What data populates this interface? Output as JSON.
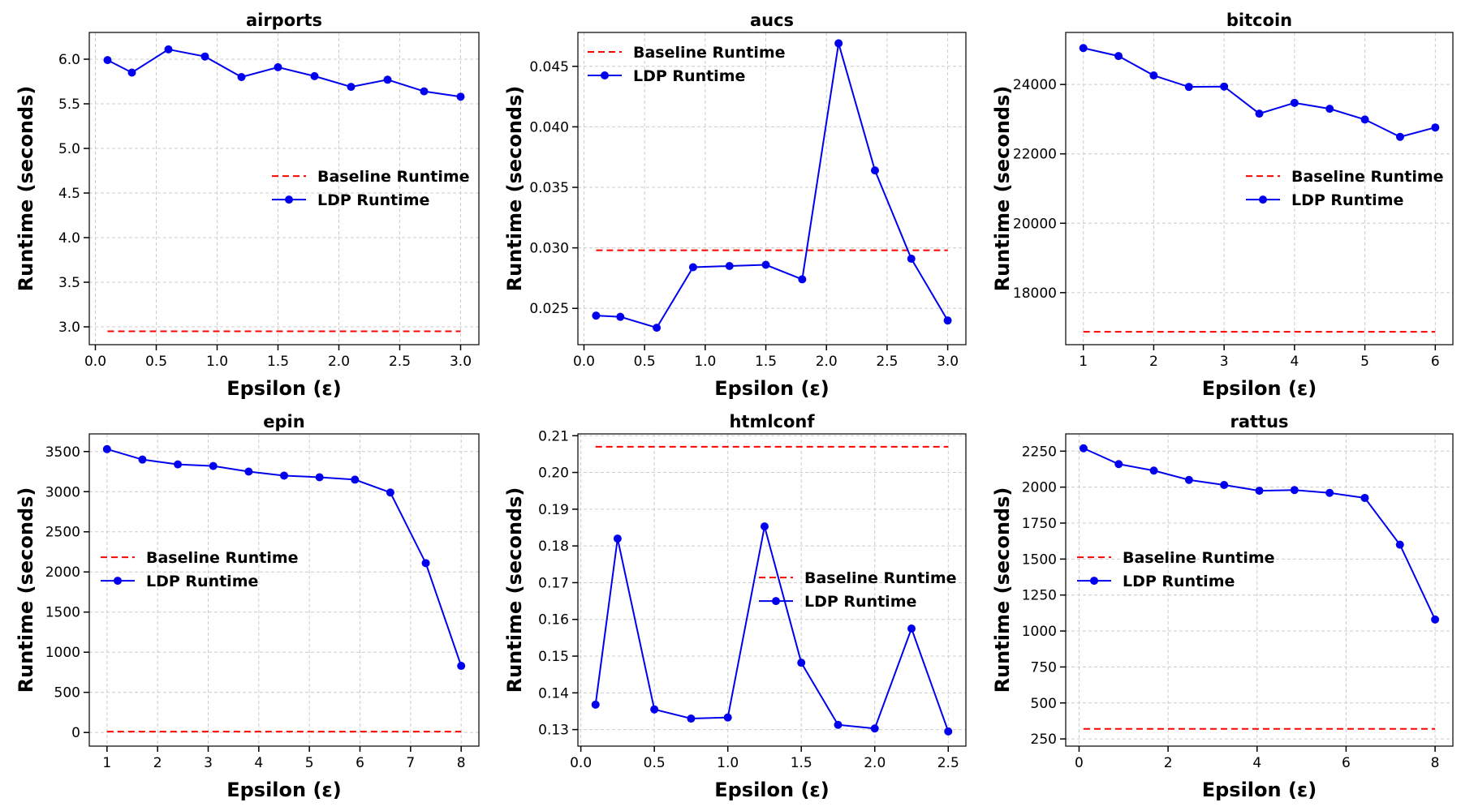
{
  "colors": {
    "baseline": "#ff0000",
    "ldp": "#0000ee",
    "grid": "#cccccc",
    "axis": "#000000"
  },
  "chart_data": [
    {
      "type": "line",
      "title": "airports",
      "xlabel": "Epsilon (ε)",
      "ylabel": "Runtime (seconds)",
      "xlim": [
        -0.05,
        3.15
      ],
      "ylim": [
        2.8,
        6.3
      ],
      "xticks": [
        0.0,
        0.5,
        1.0,
        1.5,
        2.0,
        2.5,
        3.0
      ],
      "xtick_labels": [
        "0.0",
        "0.5",
        "1.0",
        "1.5",
        "2.0",
        "2.5",
        "3.0"
      ],
      "yticks": [
        3.0,
        3.5,
        4.0,
        4.5,
        5.0,
        5.5,
        6.0
      ],
      "ytick_labels": [
        "3.0",
        "3.5",
        "4.0",
        "4.5",
        "5.0",
        "5.5",
        "6.0"
      ],
      "grid": true,
      "legend_position": "center-right",
      "series": [
        {
          "name": "Baseline Runtime",
          "style": "dashed",
          "x": [
            0.1,
            3.0
          ],
          "y": [
            2.95,
            2.95
          ]
        },
        {
          "name": "LDP Runtime",
          "style": "solid-marker",
          "x": [
            0.1,
            0.3,
            0.6,
            0.9,
            1.2,
            1.5,
            1.8,
            2.1,
            2.4,
            2.7,
            3.0
          ],
          "y": [
            5.99,
            5.85,
            6.11,
            6.03,
            5.8,
            5.91,
            5.81,
            5.69,
            5.77,
            5.64,
            5.58
          ]
        }
      ]
    },
    {
      "type": "line",
      "title": "aucs",
      "xlabel": "Epsilon (ε)",
      "ylabel": "Runtime (seconds)",
      "xlim": [
        -0.05,
        3.15
      ],
      "ylim": [
        0.022,
        0.0478
      ],
      "xticks": [
        0.0,
        0.5,
        1.0,
        1.5,
        2.0,
        2.5,
        3.0
      ],
      "xtick_labels": [
        "0.0",
        "0.5",
        "1.0",
        "1.5",
        "2.0",
        "2.5",
        "3.0"
      ],
      "yticks": [
        0.025,
        0.03,
        0.035,
        0.04,
        0.045
      ],
      "ytick_labels": [
        "0.025",
        "0.030",
        "0.035",
        "0.040",
        "0.045"
      ],
      "grid": true,
      "legend_position": "upper-left",
      "series": [
        {
          "name": "Baseline Runtime",
          "style": "dashed",
          "x": [
            0.1,
            3.0
          ],
          "y": [
            0.0298,
            0.0298
          ]
        },
        {
          "name": "LDP Runtime",
          "style": "solid-marker",
          "x": [
            0.1,
            0.3,
            0.6,
            0.9,
            1.2,
            1.5,
            1.8,
            2.1,
            2.4,
            2.7,
            3.0
          ],
          "y": [
            0.0244,
            0.0243,
            0.0234,
            0.0284,
            0.0285,
            0.0286,
            0.0274,
            0.0469,
            0.0364,
            0.0291,
            0.024
          ]
        }
      ]
    },
    {
      "type": "line",
      "title": "bitcoin",
      "xlabel": "Epsilon (ε)",
      "ylabel": "Runtime (seconds)",
      "xlim": [
        0.75,
        6.25
      ],
      "ylim": [
        16500,
        25500
      ],
      "xticks": [
        1,
        2,
        3,
        4,
        5,
        6
      ],
      "xtick_labels": [
        "1",
        "2",
        "3",
        "4",
        "5",
        "6"
      ],
      "yticks": [
        18000,
        20000,
        22000,
        24000
      ],
      "ytick_labels": [
        "18000",
        "20000",
        "22000",
        "24000"
      ],
      "grid": true,
      "legend_position": "center-right",
      "series": [
        {
          "name": "Baseline Runtime",
          "style": "dashed",
          "x": [
            1,
            6
          ],
          "y": [
            16870,
            16870
          ]
        },
        {
          "name": "LDP Runtime",
          "style": "solid-marker",
          "x": [
            1.0,
            1.5,
            2.0,
            2.5,
            3.0,
            3.5,
            4.0,
            4.5,
            5.0,
            5.5,
            6.0
          ],
          "y": [
            25050,
            24820,
            24260,
            23930,
            23940,
            23160,
            23470,
            23300,
            22990,
            22490,
            22760
          ]
        }
      ]
    },
    {
      "type": "line",
      "title": "epin",
      "xlabel": "Epsilon (ε)",
      "ylabel": "Runtime (seconds)",
      "xlim": [
        0.65,
        8.35
      ],
      "ylim": [
        -170,
        3720
      ],
      "xticks": [
        1,
        2,
        3,
        4,
        5,
        6,
        7,
        8
      ],
      "xtick_labels": [
        "1",
        "2",
        "3",
        "4",
        "5",
        "6",
        "7",
        "8"
      ],
      "yticks": [
        0,
        500,
        1000,
        1500,
        2000,
        2500,
        3000,
        3500
      ],
      "ytick_labels": [
        "0",
        "500",
        "1000",
        "1500",
        "2000",
        "2500",
        "3000",
        "3500"
      ],
      "grid": true,
      "legend_position": "center-left",
      "series": [
        {
          "name": "Baseline Runtime",
          "style": "dashed",
          "x": [
            1,
            8
          ],
          "y": [
            10,
            10
          ]
        },
        {
          "name": "LDP Runtime",
          "style": "solid-marker",
          "x": [
            1.0,
            1.7,
            2.4,
            3.1,
            3.8,
            4.5,
            5.2,
            5.9,
            6.6,
            7.3,
            8.0
          ],
          "y": [
            3530,
            3400,
            3340,
            3320,
            3250,
            3200,
            3180,
            3150,
            2990,
            2110,
            830
          ]
        }
      ]
    },
    {
      "type": "line",
      "title": "htmlconf",
      "xlabel": "Epsilon (ε)",
      "ylabel": "Runtime (seconds)",
      "xlim": [
        -0.02,
        2.62
      ],
      "ylim": [
        0.1255,
        0.2105
      ],
      "xticks": [
        0.0,
        0.5,
        1.0,
        1.5,
        2.0,
        2.5
      ],
      "xtick_labels": [
        "0.0",
        "0.5",
        "1.0",
        "1.5",
        "2.0",
        "2.5"
      ],
      "yticks": [
        0.13,
        0.14,
        0.15,
        0.16,
        0.17,
        0.18,
        0.19,
        0.2,
        0.21
      ],
      "ytick_labels": [
        "0.13",
        "0.14",
        "0.15",
        "0.16",
        "0.17",
        "0.18",
        "0.19",
        "0.20",
        "0.21"
      ],
      "grid": true,
      "legend_position": "center-right",
      "series": [
        {
          "name": "Baseline Runtime",
          "style": "dashed",
          "x": [
            0.1,
            2.5
          ],
          "y": [
            0.207,
            0.207
          ]
        },
        {
          "name": "LDP Runtime",
          "style": "solid-marker",
          "x": [
            0.1,
            0.25,
            0.5,
            0.75,
            1.0,
            1.25,
            1.5,
            1.75,
            2.0,
            2.25,
            2.5
          ],
          "y": [
            0.1368,
            0.182,
            0.1355,
            0.133,
            0.1333,
            0.1853,
            0.1482,
            0.1313,
            0.1303,
            0.1575,
            0.1295
          ]
        }
      ]
    },
    {
      "type": "line",
      "title": "rattus",
      "xlabel": "Epsilon (ε)",
      "ylabel": "Runtime (seconds)",
      "xlim": [
        -0.3,
        8.4
      ],
      "ylim": [
        200,
        2370
      ],
      "xticks": [
        0,
        2,
        4,
        6,
        8
      ],
      "xtick_labels": [
        "0",
        "2",
        "4",
        "6",
        "8"
      ],
      "yticks": [
        250,
        500,
        750,
        1000,
        1250,
        1500,
        1750,
        2000,
        2250
      ],
      "ytick_labels": [
        "250",
        "500",
        "750",
        "1000",
        "1250",
        "1500",
        "1750",
        "2000",
        "2250"
      ],
      "grid": true,
      "legend_position": "center-left",
      "series": [
        {
          "name": "Baseline Runtime",
          "style": "dashed",
          "x": [
            0.1,
            8.0
          ],
          "y": [
            320,
            320
          ]
        },
        {
          "name": "LDP Runtime",
          "style": "solid-marker",
          "x": [
            0.1,
            0.89,
            1.68,
            2.47,
            3.26,
            4.05,
            4.84,
            5.63,
            6.42,
            7.21,
            8.0
          ],
          "y": [
            2270,
            2160,
            2115,
            2050,
            2015,
            1975,
            1980,
            1960,
            1925,
            1600,
            1080
          ]
        }
      ]
    }
  ]
}
